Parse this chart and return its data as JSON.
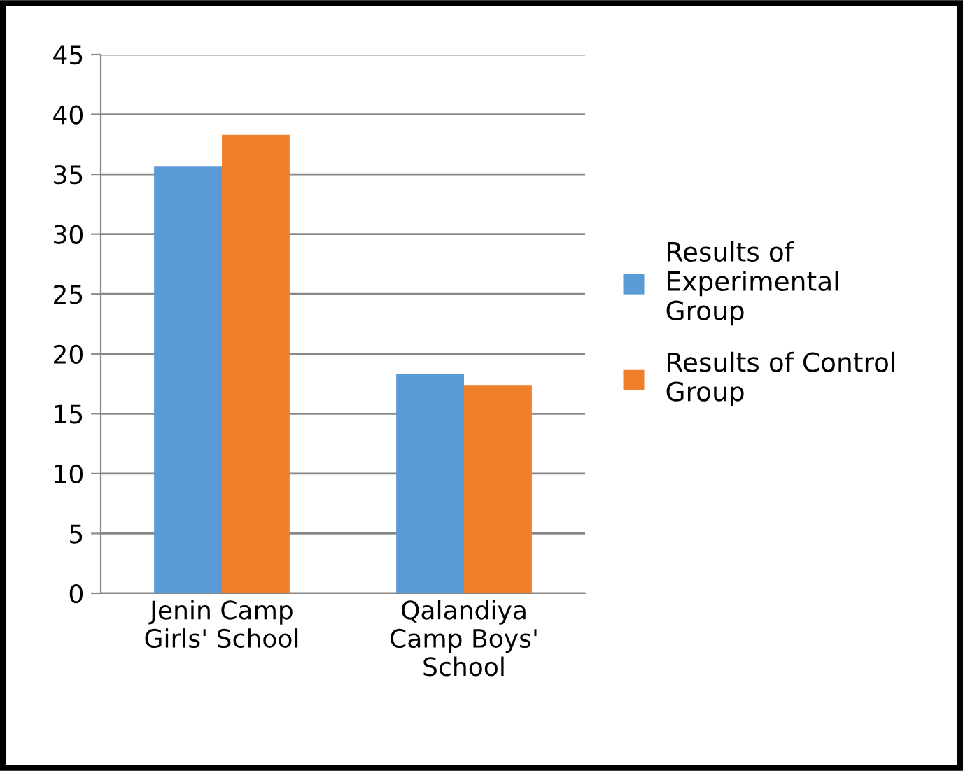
{
  "chart_data": {
    "type": "bar",
    "categories": [
      "Jenin Camp\nGirls' School",
      "Qalandiya\nCamp Boys'\nSchool"
    ],
    "series": [
      {
        "name": "Results of\nExperimental\nGroup",
        "color": "#5b9bd5",
        "values": [
          35.7,
          18.3
        ]
      },
      {
        "name": "Results of Control\nGroup",
        "color": "#f07f2c",
        "values": [
          38.3,
          17.4
        ]
      }
    ],
    "ylim": [
      0,
      45
    ],
    "yticks": [
      0,
      5,
      10,
      15,
      20,
      25,
      30,
      35,
      40,
      45
    ],
    "grid": "y",
    "legend": "right"
  }
}
